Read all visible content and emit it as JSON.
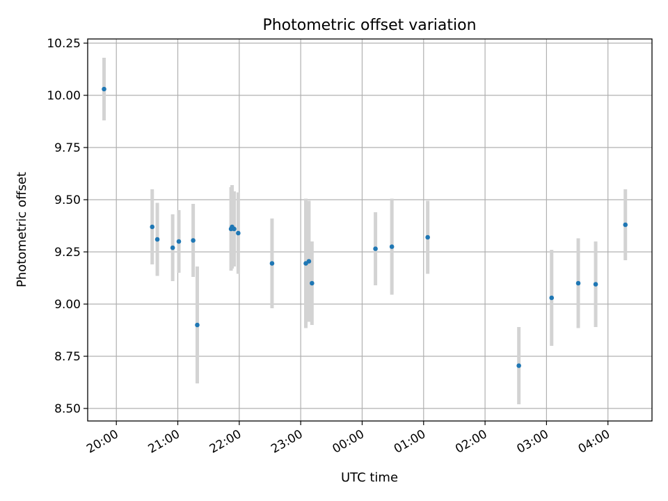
{
  "chart_data": {
    "type": "scatter",
    "title": "Photometric offset variation",
    "xlabel": "UTC time",
    "ylabel": "Photometric offset",
    "grid": true,
    "colors": {
      "point": "#1f77b4",
      "errorbar": "#d3d3d3"
    },
    "x_ticks": [
      "20:00",
      "21:00",
      "22:00",
      "23:00",
      "00:00",
      "01:00",
      "02:00",
      "03:00",
      "04:00"
    ],
    "x_tick_hours": [
      20,
      21,
      22,
      23,
      24,
      25,
      26,
      27,
      28
    ],
    "y_ticks": [
      "8.50",
      "8.75",
      "9.00",
      "9.25",
      "9.50",
      "9.75",
      "10.00",
      "10.25"
    ],
    "y_tick_values": [
      8.5,
      8.75,
      9.0,
      9.25,
      9.5,
      9.75,
      10.0,
      10.25
    ],
    "xlim": [
      "19:32",
      "04:43"
    ],
    "ylim": [
      8.44,
      10.27
    ],
    "series": [
      {
        "points": [
          {
            "x": "19:48",
            "y": 10.03,
            "err": 0.15
          },
          {
            "x": "20:35",
            "y": 9.37,
            "err": 0.18
          },
          {
            "x": "20:40",
            "y": 9.31,
            "err": 0.175
          },
          {
            "x": "20:55",
            "y": 9.27,
            "err": 0.16
          },
          {
            "x": "21:01",
            "y": 9.3,
            "err": 0.15
          },
          {
            "x": "21:15",
            "y": 9.305,
            "err": 0.175
          },
          {
            "x": "21:19",
            "y": 8.9,
            "err": 0.28
          },
          {
            "x": "21:52",
            "y": 9.36,
            "err": 0.2
          },
          {
            "x": "21:53",
            "y": 9.37,
            "err": 0.2
          },
          {
            "x": "21:55",
            "y": 9.36,
            "err": 0.18
          },
          {
            "x": "21:59",
            "y": 9.34,
            "err": 0.195
          },
          {
            "x": "22:32",
            "y": 9.195,
            "err": 0.215
          },
          {
            "x": "23:05",
            "y": 9.195,
            "err": 0.31
          },
          {
            "x": "23:08",
            "y": 9.205,
            "err": 0.29
          },
          {
            "x": "23:11",
            "y": 9.1,
            "err": 0.2
          },
          {
            "x": "00:13",
            "y": 9.265,
            "err": 0.175
          },
          {
            "x": "00:29",
            "y": 9.275,
            "err": 0.23
          },
          {
            "x": "01:04",
            "y": 9.32,
            "err": 0.175
          },
          {
            "x": "02:33",
            "y": 8.705,
            "err": 0.185
          },
          {
            "x": "03:05",
            "y": 9.03,
            "err": 0.23
          },
          {
            "x": "03:31",
            "y": 9.1,
            "err": 0.215
          },
          {
            "x": "03:48",
            "y": 9.095,
            "err": 0.205
          },
          {
            "x": "04:17",
            "y": 9.38,
            "err": 0.17
          }
        ]
      }
    ]
  }
}
